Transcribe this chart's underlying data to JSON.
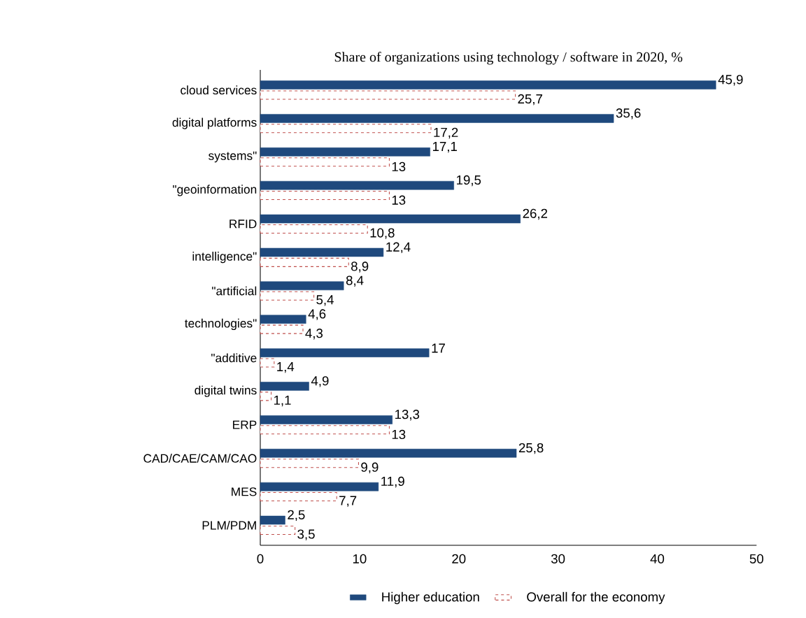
{
  "chart_data": {
    "type": "bar",
    "orientation": "horizontal",
    "title": "Share of organizations using technology / software in 2020, %",
    "categories": [
      "cloud services",
      "digital platforms",
      "systems\"",
      "\"geoinformation",
      "RFID",
      "intelligence\"",
      "\"artificial",
      "technologies\"",
      "\"additive",
      "digital twins",
      "ERP",
      "CAD/CAE/CAM/CAO",
      "MES",
      "PLM/PDM"
    ],
    "series": [
      {
        "name": "Higher education",
        "color": "#1f497d",
        "values": [
          45.9,
          35.6,
          17.1,
          19.5,
          26.2,
          12.4,
          8.4,
          4.6,
          17,
          4.9,
          13.3,
          25.8,
          11.9,
          2.5
        ],
        "value_labels": [
          "45,9",
          "35,6",
          "17,1",
          "19,5",
          "26,2",
          "12,4",
          "8,4",
          "4,6",
          "17",
          "4,9",
          "13,3",
          "25,8",
          "11,9",
          "2,5"
        ]
      },
      {
        "name": "Overall for the economy",
        "color": "#c0504d",
        "line_style": "dashed",
        "values": [
          25.7,
          17.2,
          13,
          13,
          10.8,
          8.9,
          5.4,
          4.3,
          1.4,
          1.1,
          13,
          9.9,
          7.7,
          3.5
        ],
        "value_labels": [
          "25,7",
          "17,2",
          "13",
          "13",
          "10,8",
          "8,9",
          "5,4",
          "4,3",
          "1,4",
          "1,1",
          "13",
          "9,9",
          "7,7",
          "3,5"
        ]
      }
    ],
    "xlim": [
      0,
      50
    ],
    "xticks": [
      0,
      10,
      20,
      30,
      40,
      50
    ],
    "legend": "bottom"
  }
}
